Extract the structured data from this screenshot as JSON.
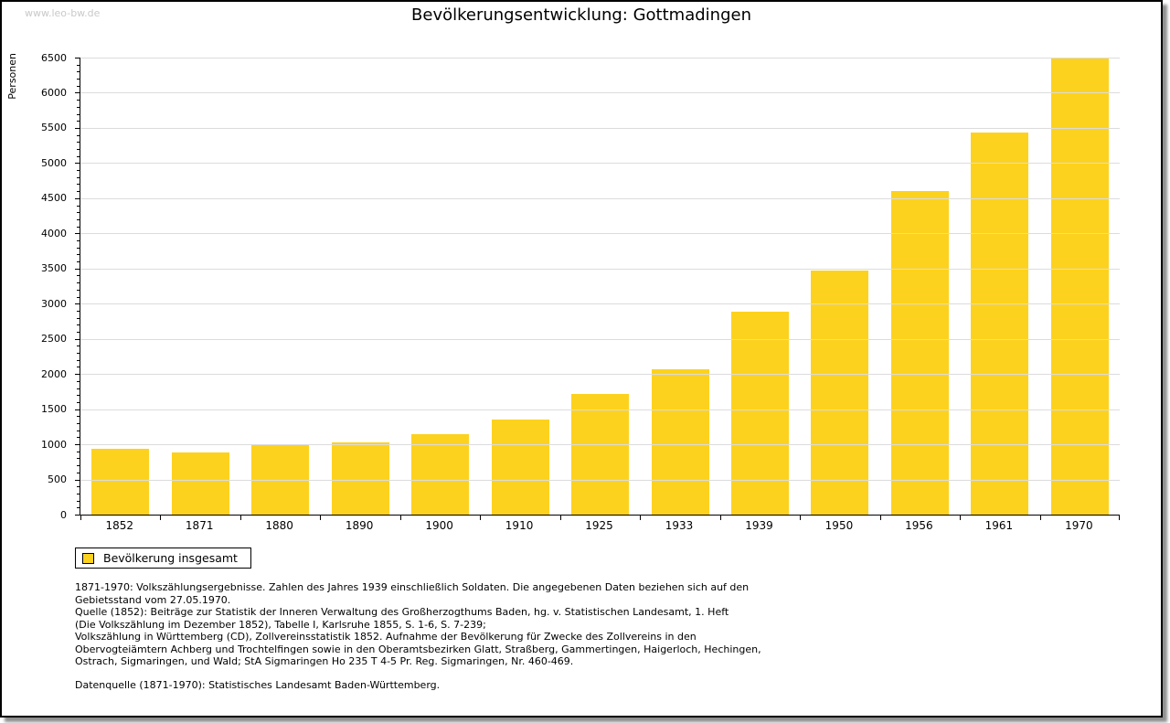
{
  "page": {
    "watermark": "www.leo-bw.de",
    "title": "Bevölkerungsentwicklung: Gottmadingen"
  },
  "chart_data": {
    "type": "bar",
    "title": "Bevölkerungsentwicklung: Gottmadingen",
    "xlabel": "",
    "ylabel": "Personen",
    "categories": [
      "1852",
      "1871",
      "1880",
      "1890",
      "1900",
      "1910",
      "1925",
      "1933",
      "1939",
      "1950",
      "1956",
      "1961",
      "1970"
    ],
    "values": [
      930,
      885,
      995,
      1030,
      1150,
      1350,
      1720,
      2070,
      2885,
      3465,
      4600,
      5430,
      6485
    ],
    "series_name": "Bevölkerung insgesamt",
    "ylim": [
      0,
      6500
    ],
    "ytick_step": 500,
    "y_minor_tick_step": 100,
    "grid": true,
    "legend_label": "Bevölkerung insgesamt",
    "legend_position": "bottom-left",
    "bar_color": "#FDD21E",
    "grid_color": "#dcdcdc"
  },
  "footnotes": [
    "1871-1970: Volkszählungsergebnisse. Zahlen des Jahres 1939 einschließlich Soldaten. Die angegebenen Daten beziehen sich auf den",
    "Gebietsstand vom 27.05.1970.",
    "Quelle (1852): Beiträge zur Statistik der Inneren Verwaltung des Großherzogthums Baden, hg. v. Statistischen Landesamt, 1. Heft",
    "(Die Volkszählung im Dezember 1852), Tabelle I, Karlsruhe 1855, S. 1-6, S. 7-239;",
    "Volkszählung in Württemberg (CD), Zollvereinsstatistik 1852. Aufnahme der Bevölkerung für Zwecke des Zollvereins in den",
    "Obervogteiämtern Achberg und Trochtelfingen sowie in den Oberamtsbezirken Glatt, Straßberg, Gammertingen, Haigerloch, Hechingen,",
    "Ostrach, Sigmaringen, und Wald; StA Sigmaringen Ho 235 T 4-5 Pr. Reg. Sigmaringen, Nr. 460-469."
  ],
  "datasource": "Datenquelle (1871-1970): Statistisches Landesamt Baden-Württemberg."
}
